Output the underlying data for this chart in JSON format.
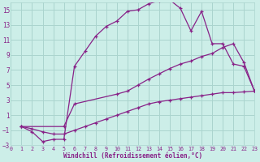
{
  "xlabel": "Windchill (Refroidissement éolien,°C)",
  "bg_color": "#cceee8",
  "grid_color": "#aad4ce",
  "line_color": "#882288",
  "xlim": [
    0,
    23
  ],
  "ylim": [
    -3,
    16
  ],
  "xticks": [
    0,
    1,
    2,
    3,
    4,
    5,
    6,
    7,
    8,
    9,
    10,
    11,
    12,
    13,
    14,
    15,
    16,
    17,
    18,
    19,
    20,
    21,
    22,
    23
  ],
  "yticks": [
    -3,
    -1,
    1,
    3,
    5,
    7,
    9,
    11,
    13,
    15
  ],
  "curve1_x": [
    1,
    2,
    3,
    4,
    5,
    6,
    7,
    8,
    9,
    10,
    11,
    12,
    13,
    14,
    15,
    16,
    17,
    18,
    19,
    20,
    21,
    22,
    23
  ],
  "curve1_y": [
    -0.5,
    -1.2,
    -2.5,
    -2.2,
    -2.2,
    7.5,
    9.5,
    11.5,
    12.8,
    13.5,
    14.8,
    15.0,
    15.8,
    16.2,
    16.3,
    15.2,
    12.2,
    14.8,
    10.5,
    10.5,
    7.8,
    7.5,
    4.2
  ],
  "curve2_x": [
    1,
    5,
    6,
    10,
    11,
    12,
    13,
    14,
    15,
    16,
    17,
    18,
    19,
    20,
    21,
    22,
    23
  ],
  "curve2_y": [
    -0.5,
    -0.5,
    2.5,
    3.8,
    4.2,
    5.0,
    5.8,
    6.5,
    7.2,
    7.8,
    8.2,
    8.8,
    9.2,
    10.0,
    10.5,
    8.0,
    4.2
  ],
  "curve3_x": [
    1,
    2,
    3,
    4,
    5,
    6,
    7,
    8,
    9,
    10,
    11,
    12,
    13,
    14,
    15,
    16,
    17,
    18,
    19,
    20,
    21,
    22,
    23
  ],
  "curve3_y": [
    -0.5,
    -0.8,
    -1.2,
    -1.5,
    -1.5,
    -1.0,
    -0.5,
    0.0,
    0.5,
    1.0,
    1.5,
    2.0,
    2.5,
    2.8,
    3.0,
    3.2,
    3.4,
    3.6,
    3.8,
    4.0,
    4.0,
    4.1,
    4.2
  ]
}
